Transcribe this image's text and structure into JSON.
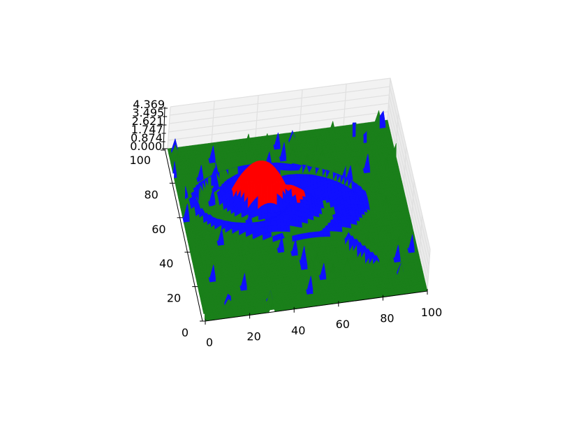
{
  "chart_data": {
    "type": "surface-3d",
    "title": "",
    "xlabel": "",
    "ylabel": "",
    "zlabel": "",
    "x_ticks": [
      "0",
      "20",
      "40",
      "60",
      "80",
      "100"
    ],
    "y_ticks": [
      "0",
      "20",
      "40",
      "60",
      "80",
      "100"
    ],
    "z_ticks": [
      "0.000",
      "0.874",
      "1.747",
      "2.621",
      "3.495",
      "4.369"
    ],
    "xlim": [
      0,
      100
    ],
    "ylim": [
      0,
      100
    ],
    "zlim": [
      0.0,
      4.369
    ],
    "grid": true,
    "legend": "none",
    "colors": {
      "background_level": "#1a7f1a",
      "middle_level": "#1010ff",
      "top_level": "#ff0000"
    },
    "features": [
      {
        "kind": "core",
        "cx": 35,
        "cy": 62,
        "rx": 15,
        "ry": 9,
        "angle": -12,
        "height": 4.37
      },
      {
        "kind": "outer-disk",
        "cx": 44,
        "cy": 60,
        "rx": 37,
        "ry": 20,
        "angle": -12,
        "height": 1.5
      },
      {
        "kind": "stream",
        "from": [
          70,
          33
        ],
        "to": [
          80,
          18
        ],
        "height": 1.2
      },
      {
        "kind": "spot",
        "x": 3,
        "y": 98,
        "height": 2.0
      },
      {
        "kind": "spot",
        "x": 56,
        "y": 95,
        "height": 2.0
      },
      {
        "kind": "spot",
        "x": 90,
        "y": 12,
        "height": 2.0
      },
      {
        "kind": "spot",
        "x": 12,
        "y": 8,
        "height": 2.0
      },
      {
        "kind": "spot",
        "x": 30,
        "y": 6,
        "height": 1.5
      },
      {
        "kind": "spot",
        "x": 88,
        "y": 90,
        "height": 1.5
      }
    ]
  }
}
